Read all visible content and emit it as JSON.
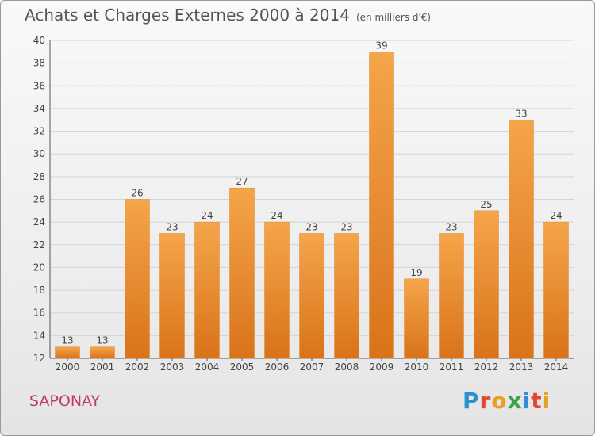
{
  "header": {
    "title": "Achats et Charges Externes 2000 à 2014",
    "unit": "(en milliers d'€)"
  },
  "footer": {
    "city": "SAPONAY",
    "logo": [
      "P",
      "r",
      "o",
      "x",
      "i",
      "t",
      "i"
    ],
    "logo_colors": [
      "#2e8fd4",
      "#e0492f",
      "#e8a020",
      "#3aa34a",
      "#2e8fd4",
      "#e0492f",
      "#e8a020"
    ]
  },
  "chart_data": {
    "type": "bar",
    "title": "Achats et Charges Externes 2000 à 2014",
    "subtitle": "(en milliers d'€)",
    "xlabel": "",
    "ylabel": "",
    "categories": [
      "2000",
      "2001",
      "2002",
      "2003",
      "2004",
      "2005",
      "2006",
      "2007",
      "2008",
      "2009",
      "2010",
      "2011",
      "2012",
      "2013",
      "2014"
    ],
    "values": [
      13,
      13,
      26,
      23,
      24,
      27,
      24,
      23,
      23,
      39,
      19,
      23,
      25,
      33,
      24
    ],
    "ylim": [
      12,
      40
    ],
    "yticks": [
      12,
      14,
      16,
      18,
      20,
      22,
      24,
      26,
      28,
      30,
      32,
      34,
      36,
      38,
      40
    ],
    "grid": true,
    "bar_color_top": "#f5a54a",
    "bar_color_bottom": "#d9731a"
  }
}
